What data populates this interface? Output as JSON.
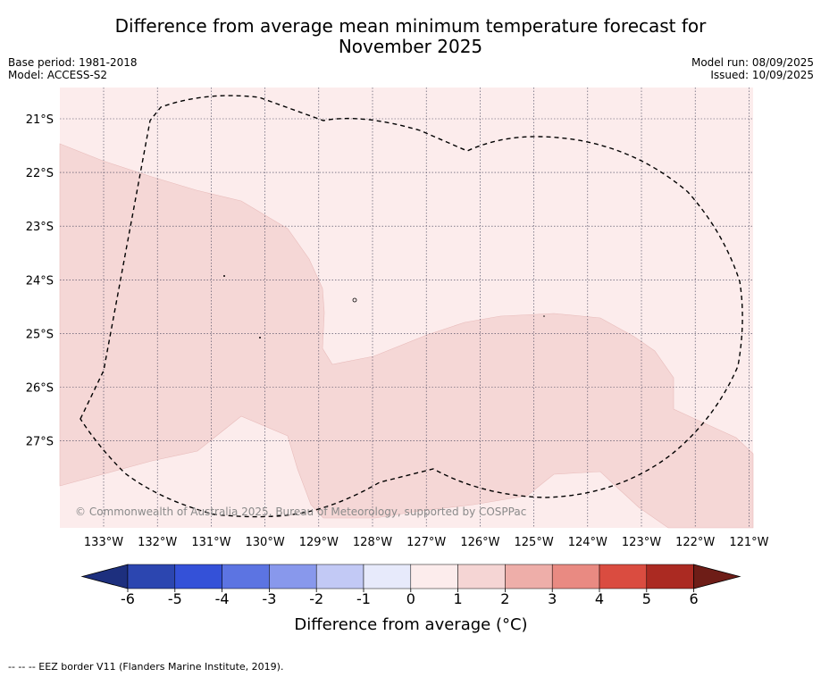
{
  "title_line1": "Difference from average mean minimum temperature forecast for",
  "title_line2": "November 2025",
  "base_period": "Base period: 1981-2018",
  "model": "Model: ACCESS-S2",
  "model_run": "Model run: 08/09/2025",
  "issued": "Issued: 10/09/2025",
  "copyright": "© Commonwealth of Australia 2025, Bureau of Meteorology, supported by COSPPac",
  "footer": "-- -- -- EEZ border V11 (Flanders Marine Institute, 2019).",
  "map": {
    "lon_labels": [
      "133°W",
      "132°W",
      "131°W",
      "130°W",
      "129°W",
      "128°W",
      "127°W",
      "126°W",
      "125°W",
      "124°W",
      "123°W",
      "122°W",
      "121°W"
    ],
    "lat_labels": [
      "21°S",
      "22°S",
      "23°S",
      "24°S",
      "25°S",
      "26°S",
      "27°S"
    ],
    "lon_range": [
      -133.8,
      -120.9
    ],
    "lat_range": [
      -28.3,
      -20.45
    ]
  },
  "colorbar": {
    "title": "Difference from average (°C)",
    "ticks": [
      "-6",
      "-5",
      "-4",
      "-3",
      "-2",
      "-1",
      "0",
      "1",
      "2",
      "3",
      "4",
      "5",
      "6"
    ],
    "colors": [
      "#1d2f7e",
      "#2c46b0",
      "#3451d8",
      "#5c74e2",
      "#8898ec",
      "#c2c9f5",
      "#e7eafb",
      "#fcecec",
      "#f5d5d4",
      "#eeaea9",
      "#e98a82",
      "#da4c40",
      "#ab2a22",
      "#6e1d17"
    ]
  },
  "chart_data": {
    "type": "heatmap",
    "title": "Difference from average mean minimum temperature forecast for November 2025",
    "categories_present": [
      "0 to 1",
      "1 to 2"
    ],
    "colorbar_ticks": [
      -6,
      -5,
      -4,
      -3,
      -2,
      -1,
      0,
      1,
      2,
      3,
      4,
      5,
      6
    ]
  }
}
